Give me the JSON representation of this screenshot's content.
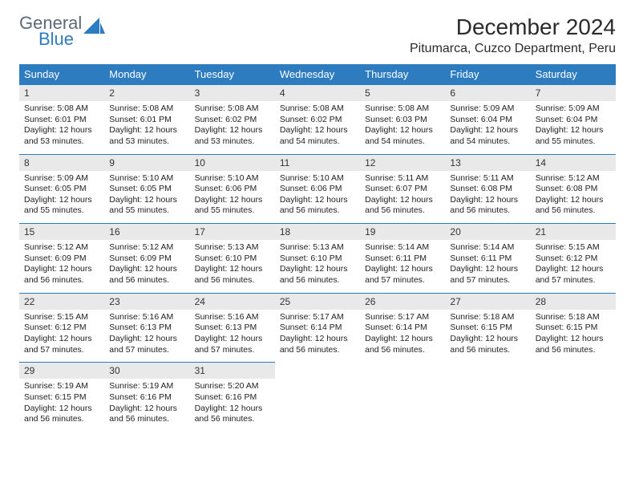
{
  "logo": {
    "top": "General",
    "bottom": "Blue",
    "shape_color": "#2e7cc0"
  },
  "title": "December 2024",
  "location": "Pitumarca, Cuzco Department, Peru",
  "colors": {
    "header_bg": "#2e7cc0",
    "header_text": "#ffffff",
    "daynum_bg": "#e9e9e9",
    "daynum_border": "#2e7cc0",
    "text": "#222222",
    "logo_top": "#5a6a78",
    "logo_bottom": "#2e7cc0"
  },
  "weekdays": [
    "Sunday",
    "Monday",
    "Tuesday",
    "Wednesday",
    "Thursday",
    "Friday",
    "Saturday"
  ],
  "days": [
    {
      "n": 1,
      "sr": "5:08 AM",
      "ss": "6:01 PM",
      "dl": "12 hours and 53 minutes."
    },
    {
      "n": 2,
      "sr": "5:08 AM",
      "ss": "6:01 PM",
      "dl": "12 hours and 53 minutes."
    },
    {
      "n": 3,
      "sr": "5:08 AM",
      "ss": "6:02 PM",
      "dl": "12 hours and 53 minutes."
    },
    {
      "n": 4,
      "sr": "5:08 AM",
      "ss": "6:02 PM",
      "dl": "12 hours and 54 minutes."
    },
    {
      "n": 5,
      "sr": "5:08 AM",
      "ss": "6:03 PM",
      "dl": "12 hours and 54 minutes."
    },
    {
      "n": 6,
      "sr": "5:09 AM",
      "ss": "6:04 PM",
      "dl": "12 hours and 54 minutes."
    },
    {
      "n": 7,
      "sr": "5:09 AM",
      "ss": "6:04 PM",
      "dl": "12 hours and 55 minutes."
    },
    {
      "n": 8,
      "sr": "5:09 AM",
      "ss": "6:05 PM",
      "dl": "12 hours and 55 minutes."
    },
    {
      "n": 9,
      "sr": "5:10 AM",
      "ss": "6:05 PM",
      "dl": "12 hours and 55 minutes."
    },
    {
      "n": 10,
      "sr": "5:10 AM",
      "ss": "6:06 PM",
      "dl": "12 hours and 55 minutes."
    },
    {
      "n": 11,
      "sr": "5:10 AM",
      "ss": "6:06 PM",
      "dl": "12 hours and 56 minutes."
    },
    {
      "n": 12,
      "sr": "5:11 AM",
      "ss": "6:07 PM",
      "dl": "12 hours and 56 minutes."
    },
    {
      "n": 13,
      "sr": "5:11 AM",
      "ss": "6:08 PM",
      "dl": "12 hours and 56 minutes."
    },
    {
      "n": 14,
      "sr": "5:12 AM",
      "ss": "6:08 PM",
      "dl": "12 hours and 56 minutes."
    },
    {
      "n": 15,
      "sr": "5:12 AM",
      "ss": "6:09 PM",
      "dl": "12 hours and 56 minutes."
    },
    {
      "n": 16,
      "sr": "5:12 AM",
      "ss": "6:09 PM",
      "dl": "12 hours and 56 minutes."
    },
    {
      "n": 17,
      "sr": "5:13 AM",
      "ss": "6:10 PM",
      "dl": "12 hours and 56 minutes."
    },
    {
      "n": 18,
      "sr": "5:13 AM",
      "ss": "6:10 PM",
      "dl": "12 hours and 56 minutes."
    },
    {
      "n": 19,
      "sr": "5:14 AM",
      "ss": "6:11 PM",
      "dl": "12 hours and 57 minutes."
    },
    {
      "n": 20,
      "sr": "5:14 AM",
      "ss": "6:11 PM",
      "dl": "12 hours and 57 minutes."
    },
    {
      "n": 21,
      "sr": "5:15 AM",
      "ss": "6:12 PM",
      "dl": "12 hours and 57 minutes."
    },
    {
      "n": 22,
      "sr": "5:15 AM",
      "ss": "6:12 PM",
      "dl": "12 hours and 57 minutes."
    },
    {
      "n": 23,
      "sr": "5:16 AM",
      "ss": "6:13 PM",
      "dl": "12 hours and 57 minutes."
    },
    {
      "n": 24,
      "sr": "5:16 AM",
      "ss": "6:13 PM",
      "dl": "12 hours and 57 minutes."
    },
    {
      "n": 25,
      "sr": "5:17 AM",
      "ss": "6:14 PM",
      "dl": "12 hours and 56 minutes."
    },
    {
      "n": 26,
      "sr": "5:17 AM",
      "ss": "6:14 PM",
      "dl": "12 hours and 56 minutes."
    },
    {
      "n": 27,
      "sr": "5:18 AM",
      "ss": "6:15 PM",
      "dl": "12 hours and 56 minutes."
    },
    {
      "n": 28,
      "sr": "5:18 AM",
      "ss": "6:15 PM",
      "dl": "12 hours and 56 minutes."
    },
    {
      "n": 29,
      "sr": "5:19 AM",
      "ss": "6:15 PM",
      "dl": "12 hours and 56 minutes."
    },
    {
      "n": 30,
      "sr": "5:19 AM",
      "ss": "6:16 PM",
      "dl": "12 hours and 56 minutes."
    },
    {
      "n": 31,
      "sr": "5:20 AM",
      "ss": "6:16 PM",
      "dl": "12 hours and 56 minutes."
    }
  ],
  "labels": {
    "sunrise": "Sunrise:",
    "sunset": "Sunset:",
    "daylight": "Daylight:"
  }
}
